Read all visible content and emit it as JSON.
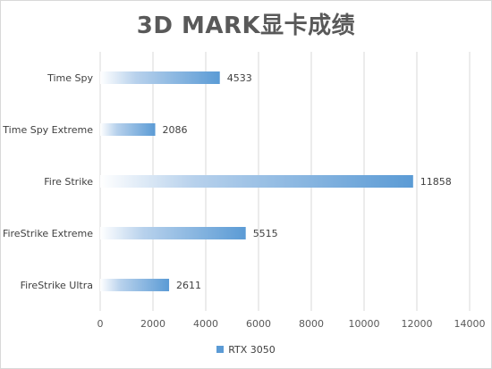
{
  "title": "3D MARK显卡成绩",
  "chart_data": {
    "type": "bar",
    "orientation": "horizontal",
    "categories": [
      "Time Spy",
      "Time Spy Extreme",
      "Fire Strike",
      "FireStrike Extreme",
      "FireStrike Ultra"
    ],
    "series": [
      {
        "name": "RTX 3050",
        "values": [
          4533,
          2086,
          11858,
          5515,
          2611
        ]
      }
    ],
    "xlim": [
      0,
      14000
    ],
    "xticks": [
      "0",
      "2000",
      "4000",
      "6000",
      "8000",
      "10000",
      "12000",
      "14000"
    ],
    "grid": true,
    "legend_position": "bottom",
    "bar_color": "#5b9bd5"
  }
}
